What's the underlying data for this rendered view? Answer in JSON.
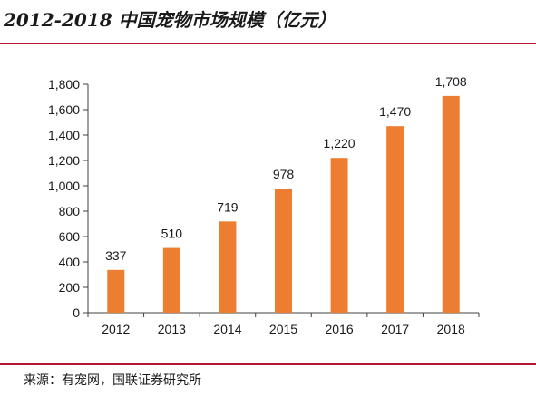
{
  "title": "2012-2018 中国宠物市场规模（亿元）",
  "source": "来源：有宠网，国联证券研究所",
  "colors": {
    "bar": "#ed7d31",
    "rule": "#b5162e",
    "axis": "#404040",
    "text": "#1a1a1a"
  },
  "chart_data": {
    "type": "bar",
    "categories": [
      "2012",
      "2013",
      "2014",
      "2015",
      "2016",
      "2017",
      "2018"
    ],
    "values": [
      337,
      510,
      719,
      978,
      1220,
      1470,
      1708
    ],
    "data_labels": [
      "337",
      "510",
      "719",
      "978",
      "1,220",
      "1,470",
      "1,708"
    ],
    "ylim": [
      0,
      1800
    ],
    "yticks": [
      0,
      200,
      400,
      600,
      800,
      1000,
      1200,
      1400,
      1600,
      1800
    ],
    "ytick_labels": [
      "0",
      "200",
      "400",
      "600",
      "800",
      "1,000",
      "1,200",
      "1,400",
      "1,600",
      "1,800"
    ],
    "grid": false,
    "legend": "none"
  }
}
